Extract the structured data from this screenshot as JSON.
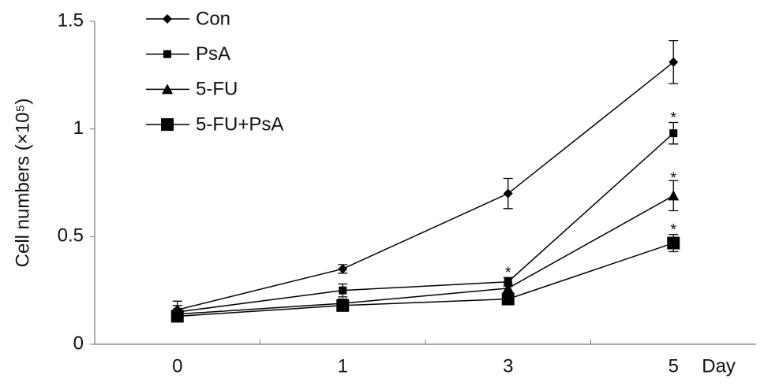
{
  "chart_data": {
    "type": "line",
    "ylabel": "Cell numbers (×10⁵)",
    "xlabel": "Day",
    "categories": [
      "0",
      "1",
      "3",
      "5"
    ],
    "ylim": [
      0,
      1.5
    ],
    "yticks": [
      0,
      0.5,
      1,
      1.5
    ],
    "series": [
      {
        "name": "Con",
        "color": "#000000",
        "marker": "diamond",
        "values": [
          0.16,
          0.35,
          0.7,
          1.31
        ],
        "errors": [
          0.04,
          0.02,
          0.07,
          0.1
        ]
      },
      {
        "name": "PsA",
        "color": "#000000",
        "marker": "square",
        "values": [
          0.15,
          0.25,
          0.29,
          0.98
        ],
        "errors": [
          0.03,
          0.03,
          0.02,
          0.05
        ]
      },
      {
        "name": "5-FU",
        "color": "#000000",
        "marker": "triangle",
        "values": [
          0.14,
          0.19,
          0.26,
          0.69
        ],
        "errors": [
          0.02,
          0.02,
          0.02,
          0.07
        ]
      },
      {
        "name": "5-FU+PsA",
        "color": "#000000",
        "marker": "big-square",
        "values": [
          0.13,
          0.18,
          0.21,
          0.47
        ],
        "errors": [
          0.02,
          0.02,
          0.02,
          0.04
        ]
      }
    ],
    "annotations": [
      {
        "text": "*",
        "x": "3",
        "y": 0.35
      },
      {
        "text": "*",
        "x": "5",
        "y": 1.07
      },
      {
        "text": "*",
        "x": "5",
        "y": 0.79
      },
      {
        "text": "*",
        "x": "5",
        "y": 0.55
      }
    ]
  }
}
